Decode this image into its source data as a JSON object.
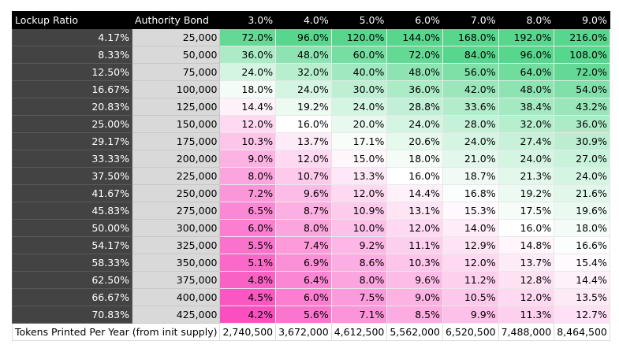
{
  "table": {
    "header": [
      "Lockup Ratio",
      "Authority Bond",
      "3.0%",
      "4.0%",
      "5.0%",
      "6.0%",
      "7.0%",
      "8.0%",
      "9.0%"
    ],
    "rows": [
      [
        "4.17%",
        "25,000",
        "72.0%",
        "96.0%",
        "120.0%",
        "144.0%",
        "168.0%",
        "192.0%",
        "216.0%"
      ],
      [
        "8.33%",
        "50,000",
        "36.0%",
        "48.0%",
        "60.0%",
        "72.0%",
        "84.0%",
        "96.0%",
        "108.0%"
      ],
      [
        "12.50%",
        "75,000",
        "24.0%",
        "32.0%",
        "40.0%",
        "48.0%",
        "56.0%",
        "64.0%",
        "72.0%"
      ],
      [
        "16.67%",
        "100,000",
        "18.0%",
        "24.0%",
        "30.0%",
        "36.0%",
        "42.0%",
        "48.0%",
        "54.0%"
      ],
      [
        "20.83%",
        "125,000",
        "14.4%",
        "19.2%",
        "24.0%",
        "28.8%",
        "33.6%",
        "38.4%",
        "43.2%"
      ],
      [
        "25.00%",
        "150,000",
        "12.0%",
        "16.0%",
        "20.0%",
        "24.0%",
        "28.0%",
        "32.0%",
        "36.0%"
      ],
      [
        "29.17%",
        "175,000",
        "10.3%",
        "13.7%",
        "17.1%",
        "20.6%",
        "24.0%",
        "27.4%",
        "30.9%"
      ],
      [
        "33.33%",
        "200,000",
        "9.0%",
        "12.0%",
        "15.0%",
        "18.0%",
        "21.0%",
        "24.0%",
        "27.0%"
      ],
      [
        "37.50%",
        "225,000",
        "8.0%",
        "10.7%",
        "13.3%",
        "16.0%",
        "18.7%",
        "21.3%",
        "24.0%"
      ],
      [
        "41.67%",
        "250,000",
        "7.2%",
        "9.6%",
        "12.0%",
        "14.4%",
        "16.8%",
        "19.2%",
        "21.6%"
      ],
      [
        "45.83%",
        "275,000",
        "6.5%",
        "8.7%",
        "10.9%",
        "13.1%",
        "15.3%",
        "17.5%",
        "19.6%"
      ],
      [
        "50.00%",
        "300,000",
        "6.0%",
        "8.0%",
        "10.0%",
        "12.0%",
        "14.0%",
        "16.0%",
        "18.0%"
      ],
      [
        "54.17%",
        "325,000",
        "5.5%",
        "7.4%",
        "9.2%",
        "11.1%",
        "12.9%",
        "14.8%",
        "16.6%"
      ],
      [
        "58.33%",
        "350,000",
        "5.1%",
        "6.9%",
        "8.6%",
        "10.3%",
        "12.0%",
        "13.7%",
        "15.4%"
      ],
      [
        "62.50%",
        "375,000",
        "4.8%",
        "6.4%",
        "8.0%",
        "9.6%",
        "11.2%",
        "12.8%",
        "14.4%"
      ],
      [
        "66.67%",
        "400,000",
        "4.5%",
        "6.0%",
        "7.5%",
        "9.0%",
        "10.5%",
        "12.0%",
        "13.5%"
      ],
      [
        "70.83%",
        "425,000",
        "4.2%",
        "5.6%",
        "7.1%",
        "8.5%",
        "9.9%",
        "11.3%",
        "12.7%"
      ]
    ],
    "footer": {
      "label": "Tokens Printed Per Year (from init supply)",
      "values": [
        "2,740,500",
        "3,672,000",
        "4,612,500",
        "5,562,000",
        "6,520,500",
        "7,488,000",
        "8,464,500"
      ]
    },
    "low_color": "#f94fbf",
    "mid_color": "#ffffff",
    "high_color": "#57d68d"
  }
}
